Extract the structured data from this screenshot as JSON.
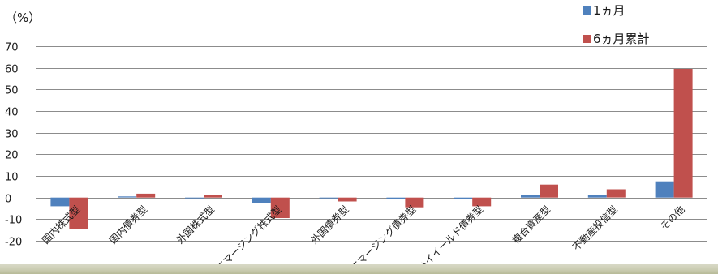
{
  "chart_data": {
    "type": "bar",
    "unit_label": "（%）",
    "categories": [
      "国内株式型",
      "国内債券型",
      "外国株式型",
      "エマージング株式型",
      "外国債券型",
      "エマージング債券型",
      "ハイイールド債券型",
      "複合資産型",
      "不動産投信型",
      "その他"
    ],
    "series": [
      {
        "name": "1ヵ月",
        "color": "#4f81bd",
        "values": [
          -4.0,
          0.5,
          -0.2,
          -2.5,
          -0.3,
          -0.8,
          -0.8,
          1.2,
          1.2,
          7.5
        ]
      },
      {
        "name": "6ヵ月累計",
        "color": "#c0504d",
        "values": [
          -14.5,
          1.8,
          1.2,
          -9.5,
          -1.8,
          -4.5,
          -4.0,
          6.0,
          3.8,
          59.5
        ]
      }
    ],
    "ylim": [
      -20,
      70
    ],
    "yticks": [
      -20,
      -10,
      0,
      10,
      20,
      30,
      40,
      50,
      60,
      70
    ],
    "ytick_labels": [
      "-20",
      "-10",
      "0",
      "10",
      "20",
      "30",
      "40",
      "50",
      "60",
      "70"
    ],
    "grid": true,
    "legend_position": "top-right"
  }
}
